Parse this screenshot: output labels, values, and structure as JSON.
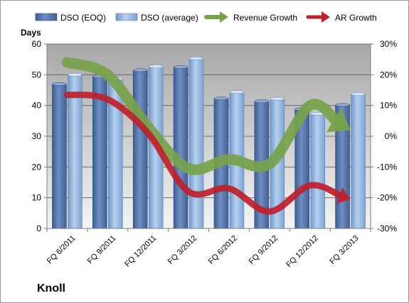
{
  "chart_data": {
    "type": "bar",
    "title": "",
    "ylabel": "Days",
    "xlabel": "",
    "ylim": [
      0,
      60
    ],
    "y2lim": [
      -30,
      30
    ],
    "yticks": [
      "0",
      "10",
      "20",
      "30",
      "40",
      "50",
      "60"
    ],
    "y2ticks": [
      "-30%",
      "-20%",
      "-10%",
      "0%",
      "10%",
      "20%",
      "30%"
    ],
    "categories": [
      "FQ 6/2011",
      "FQ 9/2011",
      "FQ 12/2011",
      "FQ 3/2012",
      "FQ 6/2012",
      "FQ 9/2012",
      "FQ 12/2012",
      "FQ 3/2013"
    ],
    "series": [
      {
        "name": "DSO (EOQ)",
        "kind": "bar",
        "color": "#4f6fa5",
        "values": [
          47,
          49.5,
          51.5,
          52.5,
          42.3,
          41.4,
          38.8,
          40.2
        ]
      },
      {
        "name": "DSO (average)",
        "kind": "bar",
        "color": "#8eb4e3",
        "values": [
          50,
          48.7,
          52.7,
          55.3,
          44.4,
          42.2,
          37.3,
          43.7
        ]
      },
      {
        "name": "Revenue Growth",
        "kind": "arrow-line",
        "axis": "secondary",
        "color": "#77a24a",
        "values": [
          24,
          20,
          3,
          -10.5,
          -7.5,
          -9,
          10,
          2
        ]
      },
      {
        "name": "AR Growth",
        "kind": "arrow-line",
        "axis": "secondary",
        "color": "#c0202a",
        "values": [
          13.5,
          12,
          1,
          -18,
          -17,
          -24.5,
          -16,
          -20.5
        ]
      }
    ],
    "grid": true,
    "legend_position": "top"
  },
  "company": "Knoll"
}
